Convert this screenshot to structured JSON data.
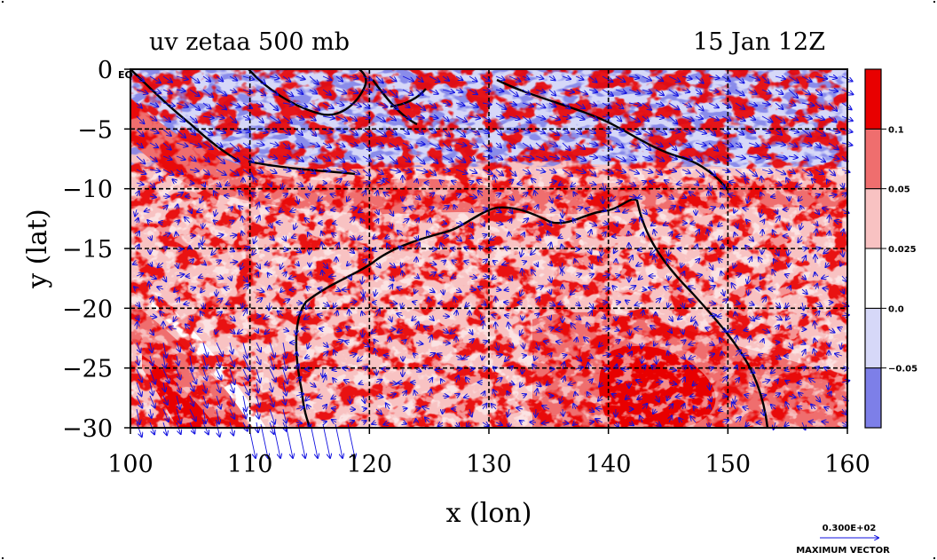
{
  "chart_data": {
    "type": "heatmap",
    "title_left": "uv zetaa 500 mb",
    "title_right": "15 Jan 12Z",
    "xlabel": "x (lon)",
    "ylabel": "y (lat)",
    "xlim": [
      100,
      160
    ],
    "ylim": [
      -30,
      0
    ],
    "x_ticks": [
      100,
      110,
      120,
      130,
      140,
      150,
      160
    ],
    "y_ticks": [
      0,
      -5,
      -10,
      -15,
      -20,
      -25,
      -30
    ],
    "x_tick_labels": [
      "100",
      "110",
      "120",
      "130",
      "140",
      "150",
      "160"
    ],
    "y_tick_labels": [
      "0",
      "−5",
      "−10",
      "−15",
      "−20",
      "−25",
      "−30"
    ],
    "y_top_suffix": "EQ",
    "grid": true,
    "colorbar": {
      "labels": [
        "0.1",
        "0.05",
        "0.025",
        "0.0",
        "−0.05"
      ],
      "levels": [
        -0.05,
        0.0,
        0.025,
        0.05,
        0.1
      ],
      "colors": [
        "#7d7fe8",
        "#d6d8f8",
        "#ffffff",
        "#f8c2c2",
        "#ef6e6e",
        "#e80000"
      ]
    },
    "vector_legend": {
      "magnitude_label": "0.300E+02",
      "caption": "MAXIMUM VECTOR"
    },
    "colors": {
      "positive_contour": "#e00000",
      "vectors": "#1010e0",
      "coast": "#000000"
    }
  }
}
